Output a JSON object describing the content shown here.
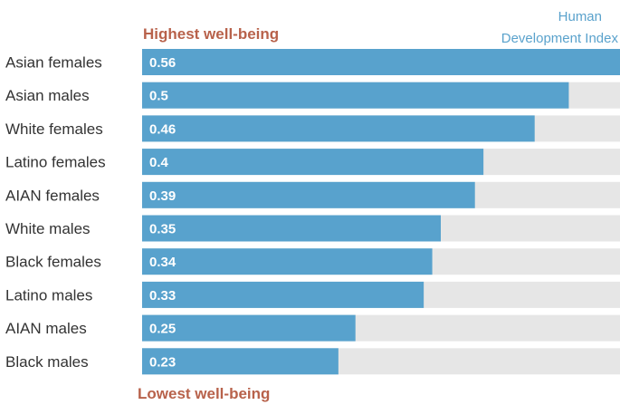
{
  "chart_data": {
    "type": "bar",
    "orientation": "horizontal",
    "title_lines": [
      "Human",
      "Development Index"
    ],
    "top_annotation": "Highest well-being",
    "bottom_annotation": "Lowest well-being",
    "categories": [
      "Asian females",
      "Asian males",
      "White females",
      "Latino females",
      "AIAN females",
      "White males",
      "Black females",
      "Latino males",
      "AIAN males",
      "Black males"
    ],
    "values": [
      0.56,
      0.5,
      0.46,
      0.4,
      0.39,
      0.35,
      0.34,
      0.33,
      0.25,
      0.23
    ],
    "value_labels": [
      "0.56",
      "0.5",
      "0.46",
      "0.4",
      "0.39",
      "0.35",
      "0.34",
      "0.33",
      "0.25",
      "0.23"
    ],
    "xlim": [
      0,
      0.56
    ],
    "grid": false,
    "legend": "none",
    "colors": {
      "bar": "#58a2cd",
      "track": "#e6e6e6",
      "value_text": "#ffffff",
      "category_text": "#333333",
      "title": "#5aa2cc",
      "annotation": "#b8624b"
    }
  }
}
